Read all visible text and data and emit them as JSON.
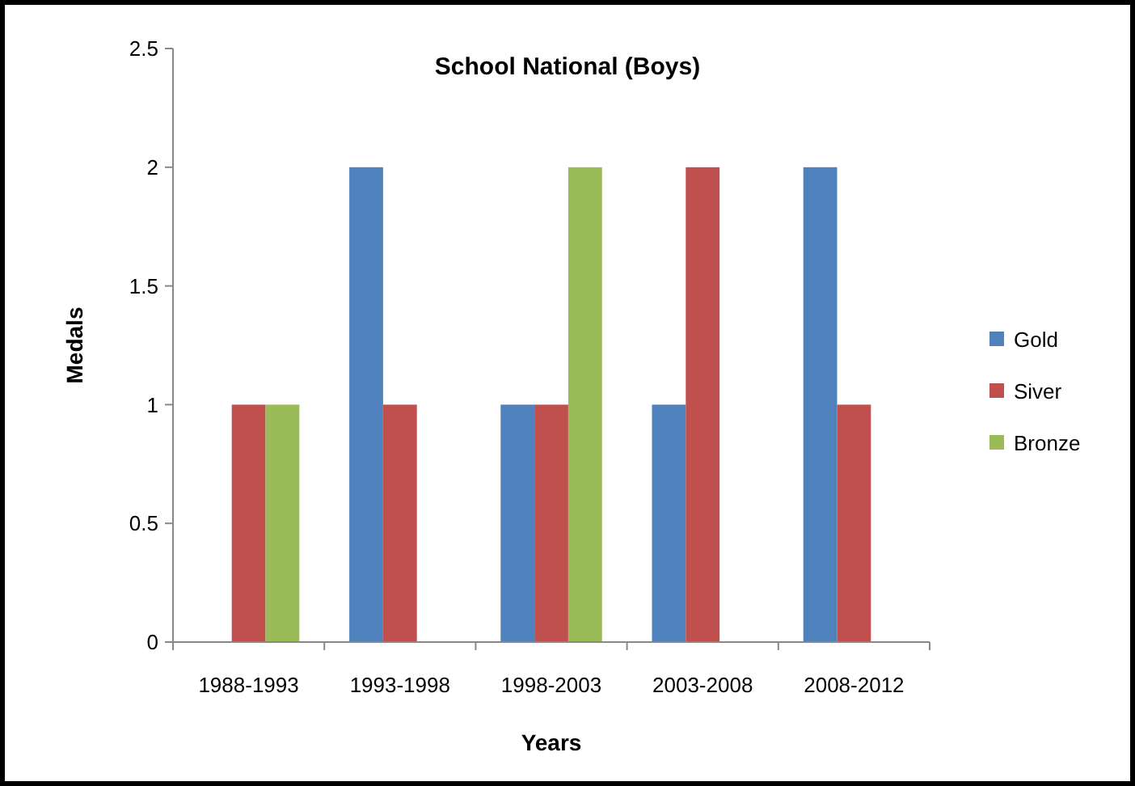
{
  "chart_data": {
    "type": "bar",
    "title": "School National (Boys)",
    "xlabel": "Years",
    "ylabel": "Medals",
    "categories": [
      "1988-1993",
      "1993-1998",
      "1998-2003",
      "2003-2008",
      "2008-2012"
    ],
    "series": [
      {
        "name": "Gold",
        "color": "#4f81bd",
        "values": [
          0,
          2,
          1,
          1,
          2
        ]
      },
      {
        "name": "Siver",
        "color": "#c0504d",
        "values": [
          1,
          1,
          1,
          2,
          1
        ]
      },
      {
        "name": "Bronze",
        "color": "#9bbb59",
        "values": [
          1,
          0,
          2,
          0,
          0
        ]
      }
    ],
    "ylim": [
      0,
      2.5
    ],
    "yticks": [
      0,
      0.5,
      1,
      1.5,
      2,
      2.5
    ],
    "grid": false,
    "legend": "right"
  }
}
